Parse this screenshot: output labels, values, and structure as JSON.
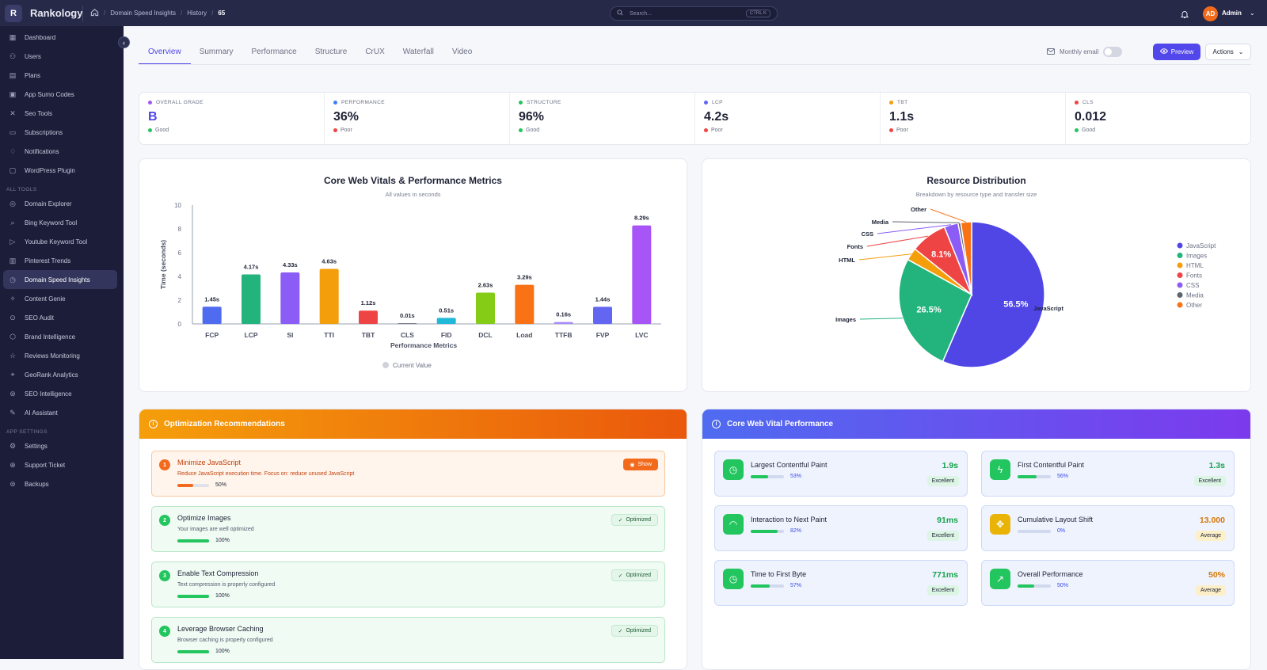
{
  "app": {
    "logo_letter": "R",
    "name": "Rankology"
  },
  "breadcrumb": [
    "Domain Speed Insights",
    "History",
    "65"
  ],
  "search": {
    "placeholder": "Search...",
    "shortcut": "CTRL K"
  },
  "user": {
    "initials": "AD",
    "name": "Admin"
  },
  "sidebar": {
    "main": [
      {
        "label": "Dashboard",
        "icon": "dashboard-icon"
      },
      {
        "label": "Users",
        "icon": "users-icon"
      },
      {
        "label": "Plans",
        "icon": "plans-icon"
      },
      {
        "label": "App Sumo Codes",
        "icon": "codes-icon"
      },
      {
        "label": "Seo Tools",
        "icon": "tools-icon"
      },
      {
        "label": "Subscriptions",
        "icon": "card-icon"
      },
      {
        "label": "Notifications",
        "icon": "bell-icon"
      },
      {
        "label": "WordPress Plugin",
        "icon": "plugin-icon"
      }
    ],
    "tools_heading": "ALL TOOLS",
    "tools": [
      {
        "label": "Domain Explorer",
        "icon": "globe-icon"
      },
      {
        "label": "Bing Keyword Tool",
        "icon": "search-icon"
      },
      {
        "label": "Youtube Keyword Tool",
        "icon": "play-icon"
      },
      {
        "label": "Pinterest Trends",
        "icon": "trends-icon"
      },
      {
        "label": "Domain Speed Insights",
        "icon": "speed-icon",
        "active": true
      },
      {
        "label": "Content Genie",
        "icon": "genie-icon"
      },
      {
        "label": "SEO Audit",
        "icon": "audit-icon"
      },
      {
        "label": "Brand Intelligence",
        "icon": "brand-icon"
      },
      {
        "label": "Reviews Monitoring",
        "icon": "reviews-icon"
      },
      {
        "label": "GeoRank Analytics",
        "icon": "geo-icon"
      },
      {
        "label": "SEO Intelligence",
        "icon": "intel-icon"
      },
      {
        "label": "AI Assistant",
        "icon": "ai-icon"
      }
    ],
    "settings_heading": "APP SETTINGS",
    "settings": [
      {
        "label": "Settings",
        "icon": "gear-icon"
      },
      {
        "label": "Support Ticket",
        "icon": "support-icon"
      },
      {
        "label": "Backups",
        "icon": "backup-icon"
      }
    ]
  },
  "tabs": [
    "Overview",
    "Summary",
    "Performance",
    "Structure",
    "CrUX",
    "Waterfall",
    "Video"
  ],
  "actions": {
    "monthly_email": "Monthly email",
    "monthly_email_on": false,
    "preview": "Preview",
    "actions": "Actions"
  },
  "metrics": [
    {
      "label": "OVERALL GRADE",
      "value": "B",
      "status": "Good",
      "dot": "#a855f7",
      "status_color": "#22c55e",
      "value_color": "#4f46e5"
    },
    {
      "label": "PERFORMANCE",
      "value": "36%",
      "status": "Poor",
      "dot": "#3b82f6",
      "status_color": "#ef4444"
    },
    {
      "label": "STRUCTURE",
      "value": "96%",
      "status": "Good",
      "dot": "#22c55e",
      "status_color": "#22c55e"
    },
    {
      "label": "LCP",
      "value": "4.2s",
      "status": "Poor",
      "dot": "#6366f1",
      "status_color": "#ef4444"
    },
    {
      "label": "TBT",
      "value": "1.1s",
      "status": "Poor",
      "dot": "#f59e0b",
      "status_color": "#ef4444"
    },
    {
      "label": "CLS",
      "value": "0.012",
      "status": "Good",
      "dot": "#ef4444",
      "status_color": "#22c55e"
    }
  ],
  "chart_data": [
    {
      "type": "bar",
      "title": "Core Web Vitals & Performance Metrics",
      "subtitle": "All values in seconds",
      "xlabel": "Performance Metrics",
      "ylabel": "Time (seconds)",
      "ylim": [
        0,
        10
      ],
      "yticks": [
        0,
        2,
        4,
        6,
        8,
        10
      ],
      "legend": "Current Value",
      "grid": false,
      "categories": [
        "FCP",
        "LCP",
        "SI",
        "TTI",
        "TBT",
        "CLS",
        "FID",
        "DCL",
        "Load",
        "TTFB",
        "FVP",
        "LVC"
      ],
      "values": [
        1.45,
        4.17,
        4.33,
        4.63,
        1.12,
        0.01,
        0.51,
        2.63,
        3.29,
        0.16,
        1.44,
        8.29
      ],
      "labels": [
        "1.45s",
        "4.17s",
        "4.33s",
        "4.63s",
        "1.12s",
        "0.01s",
        "0.51s",
        "2.63s",
        "3.29s",
        "0.16s",
        "1.44s",
        "8.29s"
      ],
      "colors": [
        "#4f6bf0",
        "#23b47e",
        "#8b5cf6",
        "#f59e0b",
        "#ef4444",
        "#7c7c8a",
        "#22b8d8",
        "#84cc16",
        "#f97316",
        "#a78bfa",
        "#6366f1",
        "#a855f7"
      ]
    },
    {
      "type": "pie",
      "title": "Resource Distribution",
      "subtitle": "Breakdown by resource type and transfer size",
      "legend_position": "right",
      "slices": [
        {
          "name": "JavaScript",
          "value": 56.5,
          "color": "#4f46e5"
        },
        {
          "name": "Images",
          "value": 26.5,
          "color": "#23b47e"
        },
        {
          "name": "HTML",
          "value": 2.8,
          "color": "#f59e0b"
        },
        {
          "name": "Fonts",
          "value": 8.1,
          "color": "#ef4444"
        },
        {
          "name": "CSS",
          "value": 3.1,
          "color": "#8b5cf6"
        },
        {
          "name": "Media",
          "value": 0.6,
          "color": "#5f6470"
        },
        {
          "name": "Other",
          "value": 2.4,
          "color": "#f97316"
        }
      ],
      "slice_labels": [
        "56.5%",
        "26.5%",
        "8.1%"
      ]
    }
  ],
  "recommendations": {
    "title": "Optimization Recommendations",
    "items": [
      {
        "num": "1",
        "title": "Minimize JavaScript",
        "desc": "Reduce JavaScript execution time. Focus on: reduce unused JavaScript",
        "progress": 50,
        "progress_label": "50%",
        "badge": "Show",
        "state": "warn"
      },
      {
        "num": "2",
        "title": "Optimize Images",
        "desc": "Your images are well optimized",
        "progress": 100,
        "progress_label": "100%",
        "badge": "Optimized",
        "state": "ok"
      },
      {
        "num": "3",
        "title": "Enable Text Compression",
        "desc": "Text compression is properly configured",
        "progress": 100,
        "progress_label": "100%",
        "badge": "Optimized",
        "state": "ok"
      },
      {
        "num": "4",
        "title": "Leverage Browser Caching",
        "desc": "Browser caching is properly configured",
        "progress": 100,
        "progress_label": "100%",
        "badge": "Optimized",
        "state": "ok"
      }
    ]
  },
  "cwv": {
    "title": "Core Web Vital Performance",
    "items": [
      {
        "name": "Largest Contentful Paint",
        "pct": 53,
        "pct_label": "53%",
        "value": "1.9s",
        "badge": "Excellent",
        "icon": "clock-icon",
        "color": "#22c55e"
      },
      {
        "name": "First Contentful Paint",
        "pct": 56,
        "pct_label": "56%",
        "value": "1.3s",
        "badge": "Excellent",
        "icon": "bolt-icon",
        "color": "#22c55e"
      },
      {
        "name": "Interaction to Next Paint",
        "pct": 82,
        "pct_label": "82%",
        "value": "91ms",
        "badge": "Excellent",
        "icon": "gauge-icon",
        "color": "#22c55e"
      },
      {
        "name": "Cumulative Layout Shift",
        "pct": 0,
        "pct_label": "0%",
        "value": "13.000",
        "badge": "Average",
        "icon": "move-icon",
        "color": "#f59e0b"
      },
      {
        "name": "Time to First Byte",
        "pct": 57,
        "pct_label": "57%",
        "value": "771ms",
        "badge": "Excellent",
        "icon": "clock-icon",
        "color": "#22c55e"
      },
      {
        "name": "Overall Performance",
        "pct": 50,
        "pct_label": "50%",
        "value": "50%",
        "badge": "Average",
        "icon": "trend-up-icon",
        "color": "#22c55e"
      }
    ]
  }
}
